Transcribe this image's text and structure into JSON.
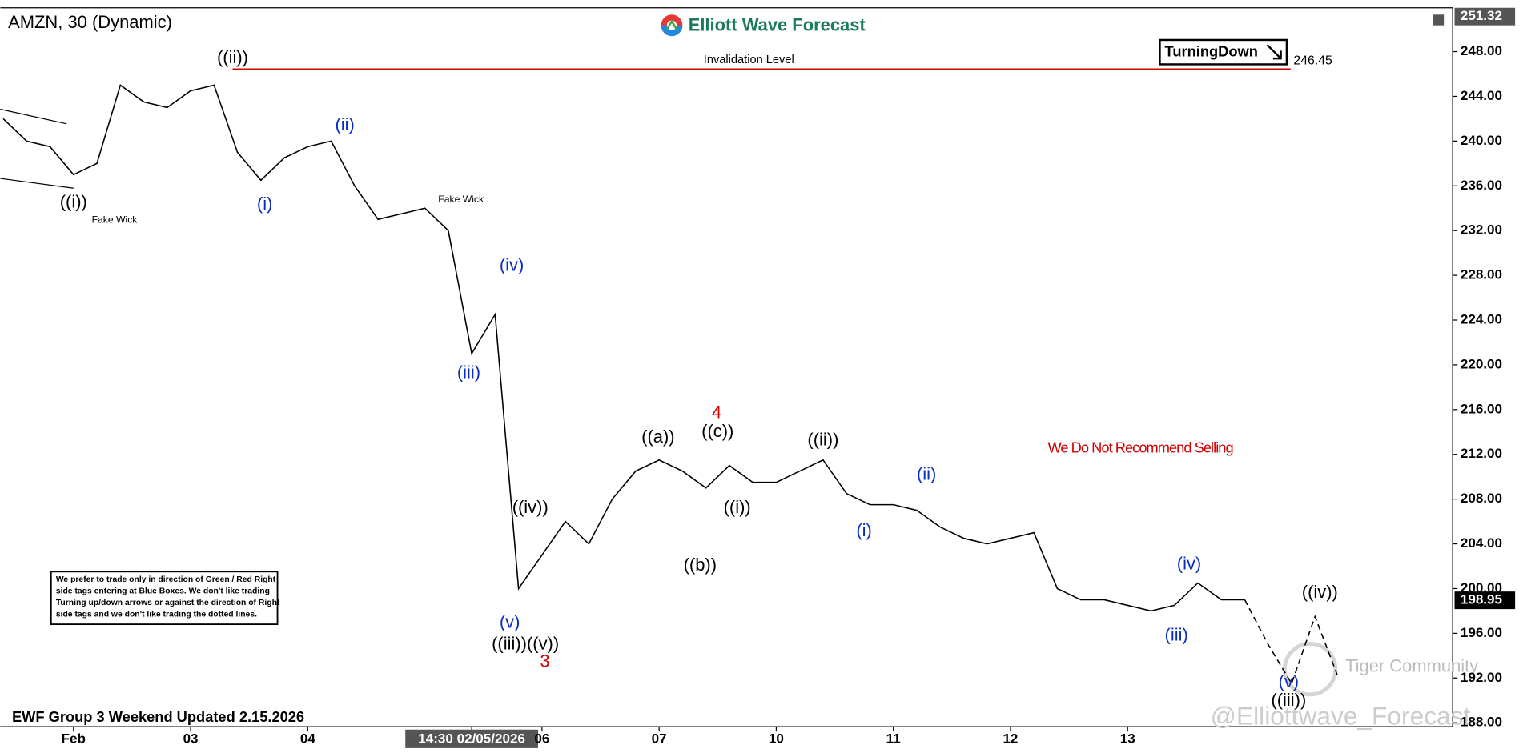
{
  "chart_data": {
    "type": "line",
    "title": "AMZN, 30 (Dynamic)",
    "brand": "Elliott Wave Forecast",
    "tag": "TurningDown",
    "footer": "EWF Group 3 Weekend Updated 2.15.2026",
    "watermark": "Tiger Community",
    "handle": "@Elliottwave_Forecast",
    "note": [
      "We prefer to trade only in direction of Green / Red Right",
      "side tags entering at Blue Boxes. We don't like trading",
      "Turning up/down arrows or against the direction of Right",
      "side tags and we don't like trading the dotted lines."
    ],
    "categories": [
      null,
      null,
      null,
      "Feb",
      null,
      null,
      null,
      null,
      "03",
      null,
      null,
      null,
      null,
      "04",
      null,
      null,
      null,
      null,
      null,
      null,
      "14:30 02/05/2026",
      null,
      null,
      "06",
      null,
      null,
      null,
      null,
      "07",
      null,
      null,
      null,
      null,
      "10",
      null,
      null,
      null,
      null,
      "11",
      null,
      null,
      null,
      null,
      "12",
      null,
      null,
      null,
      null,
      "13",
      null,
      null,
      null,
      null,
      null,
      null,
      null,
      null,
      null
    ],
    "values": [
      242,
      240,
      239.5,
      237,
      238,
      245,
      243.5,
      243,
      244.5,
      245,
      239,
      236.5,
      238.5,
      239.5,
      240,
      236,
      233,
      233.5,
      234,
      232,
      221,
      224.5,
      200,
      203,
      206,
      204,
      208,
      210.5,
      211.5,
      210.5,
      209,
      211,
      209.5,
      209.5,
      210.5,
      211.5,
      208.5,
      207.5,
      207.5,
      207,
      205.5,
      204.5,
      204,
      204.5,
      205,
      200,
      199,
      199,
      198.5,
      198,
      198.5,
      200.5,
      199,
      199,
      null,
      null,
      null,
      null
    ],
    "projection": [
      null,
      null,
      null,
      null,
      null,
      null,
      null,
      null,
      null,
      null,
      null,
      null,
      null,
      null,
      null,
      null,
      null,
      null,
      null,
      null,
      null,
      null,
      null,
      null,
      null,
      null,
      null,
      null,
      null,
      null,
      null,
      null,
      null,
      null,
      null,
      null,
      null,
      null,
      null,
      null,
      null,
      null,
      null,
      null,
      null,
      null,
      null,
      null,
      null,
      null,
      null,
      null,
      null,
      199,
      195,
      191.5,
      197.5,
      192
    ],
    "color": "#000000",
    "ylim": [
      187.65,
      251.92
    ],
    "yticks": [
      {
        "value": 188,
        "label": "188.00"
      },
      {
        "value": 192,
        "label": "192.00"
      },
      {
        "value": 196,
        "label": "196.00"
      },
      {
        "value": 200,
        "label": "200.00"
      },
      {
        "value": 204,
        "label": "204.00"
      },
      {
        "value": 208,
        "label": "208.00"
      },
      {
        "value": 212,
        "label": "212.00"
      },
      {
        "value": 216,
        "label": "216.00"
      },
      {
        "value": 220,
        "label": "220.00"
      },
      {
        "value": 224,
        "label": "224.00"
      },
      {
        "value": 228,
        "label": "228.00"
      },
      {
        "value": 232,
        "label": "232.00"
      },
      {
        "value": 236,
        "label": "236.00"
      },
      {
        "value": 240,
        "label": "240.00"
      },
      {
        "value": 244,
        "label": "244.00"
      },
      {
        "value": 248,
        "label": "248.00"
      }
    ],
    "high_label": 251.32,
    "current_price": 198.95,
    "invalidation": {
      "label": "Invalidation Level",
      "value": 246.45,
      "color": "#d00000"
    },
    "annotations": [
      {
        "text": "((i))",
        "color": "#000000"
      },
      {
        "text": "Fake Wick",
        "color": "#000000"
      },
      {
        "text": "((ii))",
        "color": "#000000"
      },
      {
        "text": "(i)",
        "color": "#0a2dbf"
      },
      {
        "text": "(ii)",
        "color": "#0a2dbf"
      },
      {
        "text": "Fake Wick",
        "color": "#000000"
      },
      {
        "text": "(iv)",
        "color": "#0a2dbf"
      },
      {
        "text": "(iii)",
        "color": "#0a2dbf"
      },
      {
        "text": "((iv))",
        "color": "#000000"
      },
      {
        "text": "(v)",
        "color": "#0a2dbf"
      },
      {
        "text": "((iii))((v))",
        "color": "#000000"
      },
      {
        "text": "3",
        "color": "#d00000"
      },
      {
        "text": "4",
        "color": "#d00000"
      },
      {
        "text": "((a))",
        "color": "#000000"
      },
      {
        "text": "((c))",
        "color": "#000000"
      },
      {
        "text": "((b))",
        "color": "#000000"
      },
      {
        "text": "((i))",
        "color": "#000000"
      },
      {
        "text": "((ii))",
        "color": "#000000"
      },
      {
        "text": "(i)",
        "color": "#0a2dbf"
      },
      {
        "text": "(ii)",
        "color": "#0a2dbf"
      },
      {
        "text": "(iv)",
        "color": "#0a2dbf"
      },
      {
        "text": "(iii)",
        "color": "#0a2dbf"
      },
      {
        "text": "((iv))",
        "color": "#000000"
      },
      {
        "text": "(v)",
        "color": "#0a2dbf"
      },
      {
        "text": "((iii))",
        "color": "#000000"
      },
      {
        "text": "We Do Not Recommend Selling",
        "color": "#d00000"
      }
    ]
  }
}
